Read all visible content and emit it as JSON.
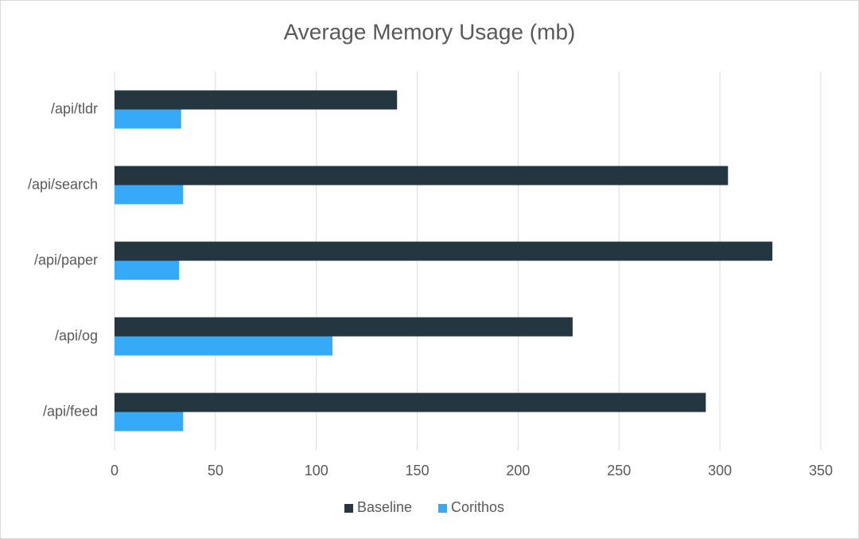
{
  "chart_data": {
    "type": "bar",
    "orientation": "horizontal",
    "title": "Average Memory Usage (mb)",
    "categories": [
      "/api/tldr",
      "/api/search",
      "/api/paper",
      "/api/og",
      "/api/feed"
    ],
    "series": [
      {
        "name": "Baseline",
        "color": "#243640",
        "values": [
          140,
          304,
          326,
          227,
          293
        ]
      },
      {
        "name": "Corithos",
        "color": "#36a9f7",
        "values": [
          33,
          34,
          32,
          108,
          34
        ]
      }
    ],
    "xlim": [
      0,
      350
    ],
    "xticks": [
      0,
      50,
      100,
      150,
      200,
      250,
      300,
      350
    ],
    "grid": true,
    "legend": "bottom"
  }
}
